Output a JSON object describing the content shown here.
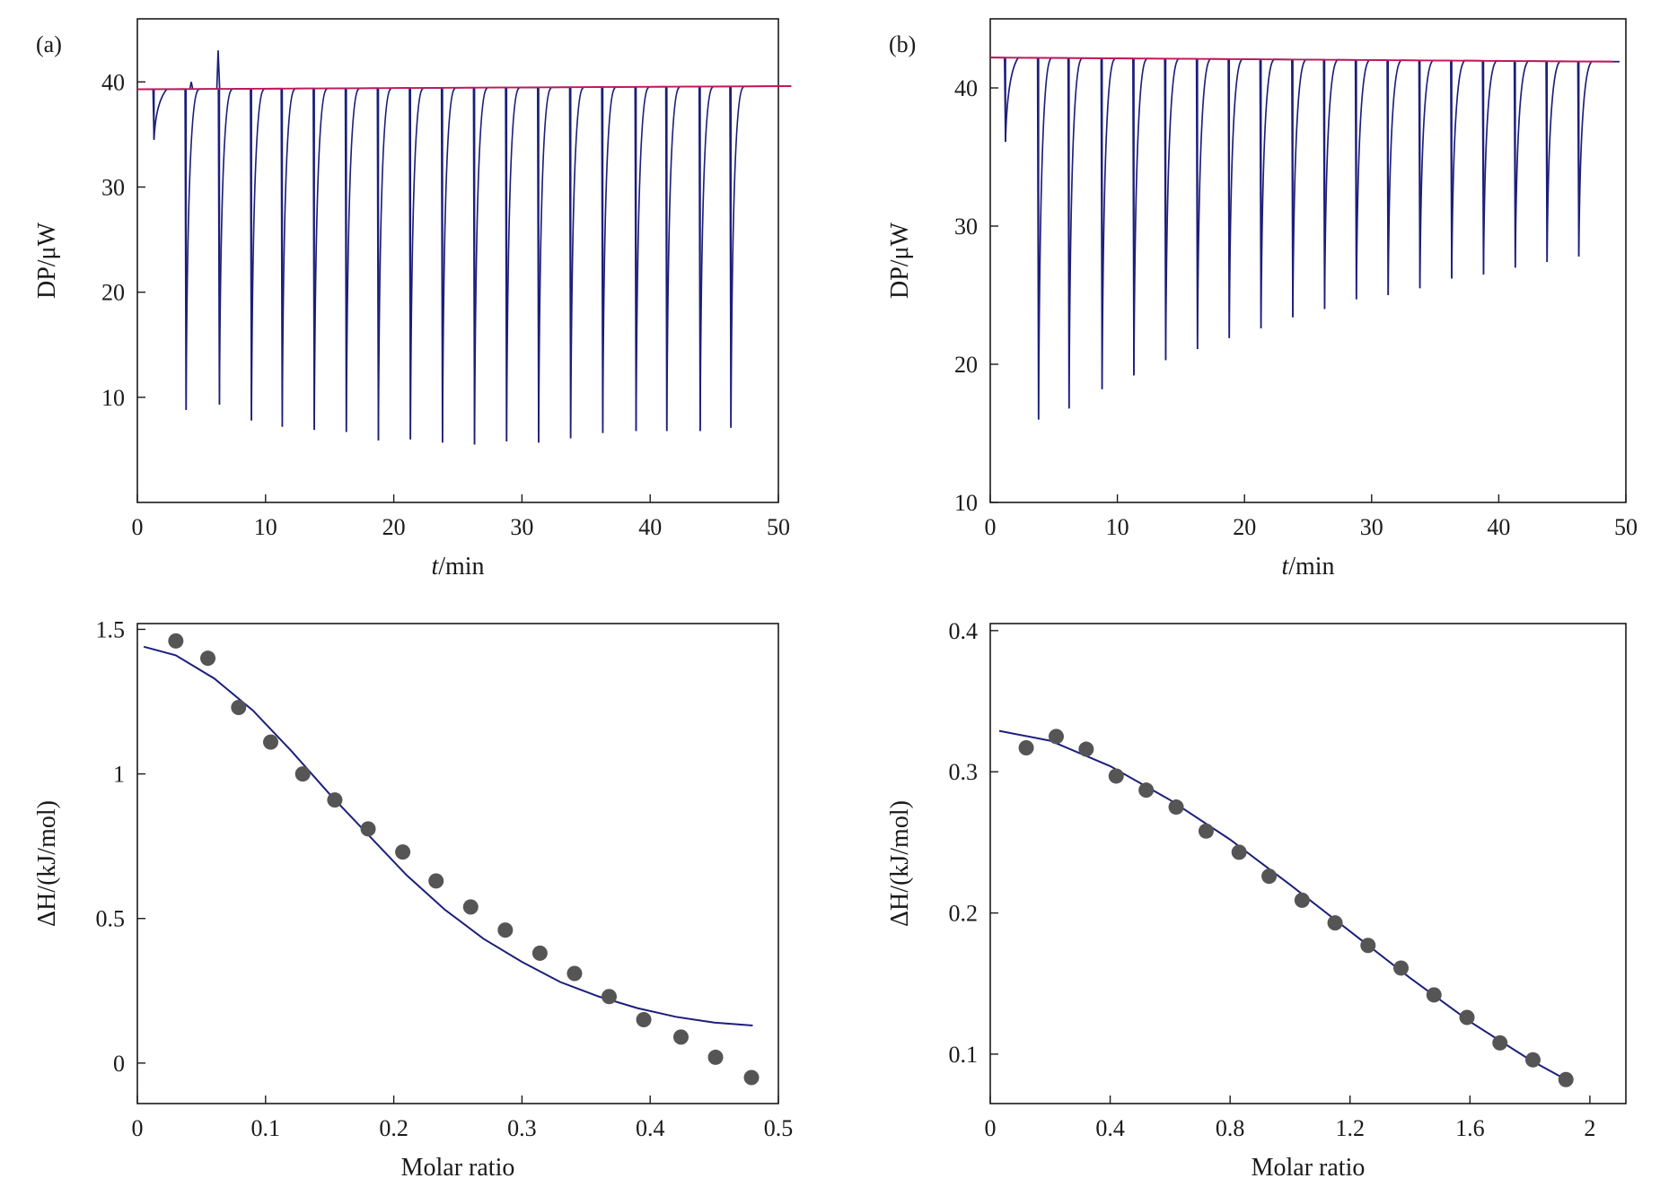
{
  "chart_data": [
    {
      "id": "a-top",
      "type": "line",
      "panel_label": "(a)",
      "xlabel_italic": "t",
      "xlabel_rest": "/min",
      "ylabel": "DP/μW",
      "xlim": [
        0,
        50
      ],
      "ylim": [
        0,
        46
      ],
      "xticks": [
        0,
        10,
        20,
        30,
        40,
        50
      ],
      "yticks": [
        10,
        20,
        30,
        40
      ],
      "baseline": {
        "x": [
          0,
          51
        ],
        "y": [
          39.3,
          39.6
        ]
      },
      "spikes": {
        "name": "injection peaks",
        "x": [
          1.3,
          3.8,
          6.4,
          8.9,
          11.3,
          13.8,
          16.3,
          18.8,
          21.3,
          23.8,
          26.3,
          28.8,
          31.3,
          33.8,
          36.3,
          38.9,
          41.3,
          43.9,
          46.3
        ],
        "y": [
          34.5,
          8.8,
          9.3,
          7.8,
          7.2,
          6.9,
          6.7,
          5.9,
          6.0,
          5.7,
          5.5,
          5.8,
          5.7,
          6.1,
          6.6,
          6.8,
          6.8,
          6.8,
          7.1
        ]
      },
      "bumps": {
        "x": [
          4.2,
          6.3
        ],
        "y": [
          40.0,
          43.0
        ]
      }
    },
    {
      "id": "b-top",
      "type": "line",
      "panel_label": "(b)",
      "xlabel_italic": "t",
      "xlabel_rest": "/min",
      "ylabel": "DP/μW",
      "xlim": [
        0,
        50
      ],
      "ylim": [
        10,
        45
      ],
      "xticks": [
        0,
        10,
        20,
        30,
        40,
        50
      ],
      "yticks": [
        10,
        20,
        30,
        40
      ],
      "baseline": {
        "x": [
          0,
          49
        ],
        "y": [
          42.2,
          41.9
        ]
      },
      "spikes": {
        "name": "injection peaks",
        "x": [
          1.2,
          3.8,
          6.2,
          8.8,
          11.3,
          13.8,
          16.3,
          18.8,
          21.3,
          23.8,
          26.3,
          28.8,
          31.3,
          33.8,
          36.3,
          38.8,
          41.3,
          43.8,
          46.3
        ],
        "y": [
          36.1,
          16.0,
          16.8,
          18.2,
          19.2,
          20.3,
          21.1,
          21.9,
          22.6,
          23.4,
          24.0,
          24.7,
          25.0,
          25.5,
          26.2,
          26.5,
          27.0,
          27.4,
          27.8
        ]
      }
    },
    {
      "id": "a-bottom",
      "type": "scatter",
      "xlabel": "Molar ratio",
      "ylabel": "ΔH/(kJ/mol)",
      "xlim": [
        0,
        0.5
      ],
      "ylim": [
        -0.14,
        1.52
      ],
      "xticks": [
        0,
        0.1,
        0.2,
        0.3,
        0.4,
        0.5
      ],
      "xtick_labels": [
        "0",
        "0.1",
        "0.2",
        "0.3",
        "0.4",
        "0.5"
      ],
      "yticks": [
        0,
        0.5,
        1,
        1.5
      ],
      "ytick_labels": [
        "0",
        "0.5",
        "1",
        "1.5"
      ],
      "points": {
        "x": [
          0.03,
          0.055,
          0.079,
          0.104,
          0.129,
          0.154,
          0.18,
          0.207,
          0.233,
          0.26,
          0.287,
          0.314,
          0.341,
          0.368,
          0.395,
          0.424,
          0.451,
          0.479
        ],
        "y": [
          1.46,
          1.4,
          1.23,
          1.11,
          1.0,
          0.91,
          0.81,
          0.73,
          0.63,
          0.54,
          0.46,
          0.38,
          0.31,
          0.23,
          0.15,
          0.09,
          0.02,
          -0.05
        ]
      },
      "fit": {
        "x": [
          0.005,
          0.03,
          0.06,
          0.09,
          0.12,
          0.15,
          0.18,
          0.21,
          0.24,
          0.27,
          0.3,
          0.33,
          0.36,
          0.39,
          0.42,
          0.45,
          0.48
        ],
        "y": [
          1.44,
          1.41,
          1.33,
          1.22,
          1.08,
          0.93,
          0.79,
          0.65,
          0.53,
          0.43,
          0.35,
          0.28,
          0.23,
          0.19,
          0.16,
          0.14,
          0.13
        ]
      }
    },
    {
      "id": "b-bottom",
      "type": "scatter",
      "xlabel": "Molar ratio",
      "ylabel": "ΔH/(kJ/mol)",
      "xlim": [
        0,
        2.12
      ],
      "ylim": [
        0.065,
        0.405
      ],
      "xticks": [
        0,
        0.4,
        0.8,
        1.2,
        1.6,
        2
      ],
      "xtick_labels": [
        "0",
        "0.4",
        "0.8",
        "1.2",
        "1.6",
        "2"
      ],
      "yticks": [
        0.1,
        0.2,
        0.3,
        0.4
      ],
      "ytick_labels": [
        "0.1",
        "0.2",
        "0.3",
        "0.4"
      ],
      "points": {
        "x": [
          0.12,
          0.22,
          0.32,
          0.42,
          0.52,
          0.62,
          0.72,
          0.83,
          0.93,
          1.04,
          1.15,
          1.26,
          1.37,
          1.48,
          1.59,
          1.7,
          1.81,
          1.92
        ],
        "y": [
          0.317,
          0.325,
          0.316,
          0.297,
          0.287,
          0.275,
          0.258,
          0.243,
          0.226,
          0.209,
          0.193,
          0.177,
          0.161,
          0.142,
          0.126,
          0.108,
          0.096,
          0.082
        ]
      },
      "fit": {
        "x": [
          0.03,
          0.2,
          0.4,
          0.6,
          0.8,
          1.0,
          1.2,
          1.4,
          1.6,
          1.8,
          1.92
        ],
        "y": [
          0.329,
          0.322,
          0.304,
          0.28,
          0.252,
          0.22,
          0.187,
          0.154,
          0.123,
          0.096,
          0.082
        ]
      }
    }
  ]
}
